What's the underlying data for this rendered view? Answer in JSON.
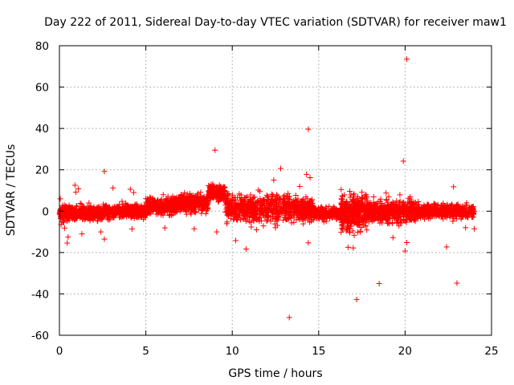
{
  "chart_data": {
    "type": "scatter",
    "title": "Day 222 of 2011, Sidereal Day-to-day VTEC variation (SDTVAR) for receiver maw1",
    "xlabel": "GPS time / hours",
    "ylabel": "SDTVAR / TECUs",
    "xlim": [
      0,
      25
    ],
    "ylim": [
      -60,
      80
    ],
    "xticks": [
      0,
      5,
      10,
      15,
      20,
      25
    ],
    "yticks": [
      -60,
      -40,
      -20,
      0,
      20,
      40,
      60,
      80
    ],
    "grid": true,
    "marker": "+",
    "series": [
      {
        "name": "SDTVAR",
        "color": "#ff0000",
        "points": [
          [
            20.1,
            73.5
          ],
          [
            14.4,
            39.6
          ],
          [
            9.0,
            29.5
          ],
          [
            12.8,
            20.6
          ],
          [
            2.6,
            19.2
          ],
          [
            19.9,
            24.2
          ],
          [
            14.3,
            17.8
          ],
          [
            14.5,
            16.2
          ],
          [
            12.4,
            15.0
          ],
          [
            0.9,
            12.5
          ],
          [
            1.1,
            10.8
          ],
          [
            0.95,
            9.2
          ],
          [
            3.1,
            11.2
          ],
          [
            13.9,
            12.0
          ],
          [
            22.8,
            11.8
          ],
          [
            18.9,
            8.8
          ],
          [
            19.7,
            7.9
          ],
          [
            20.3,
            6.9
          ],
          [
            16.8,
            9.6
          ],
          [
            17.5,
            9.2
          ],
          [
            4.1,
            10.6
          ],
          [
            4.3,
            9.0
          ],
          [
            10.4,
            8.3
          ],
          [
            11.6,
            9.5
          ],
          [
            12.0,
            7.7
          ],
          [
            7.7,
            6.5
          ],
          [
            16.3,
            10.5
          ],
          [
            0.3,
            -8.2
          ],
          [
            0.5,
            -12.5
          ],
          [
            0.45,
            -15.4
          ],
          [
            1.3,
            -11.0
          ],
          [
            2.6,
            -13.5
          ],
          [
            2.4,
            -10.0
          ],
          [
            4.2,
            -8.6
          ],
          [
            9.1,
            -10.0
          ],
          [
            10.2,
            -14.2
          ],
          [
            10.8,
            -18.3
          ],
          [
            12.5,
            -8.0
          ],
          [
            13.3,
            -51.4
          ],
          [
            14.4,
            -15.3
          ],
          [
            15.3,
            -5.2
          ],
          [
            16.3,
            -10.2
          ],
          [
            16.7,
            -17.5
          ],
          [
            17.0,
            -17.8
          ],
          [
            17.2,
            -42.7
          ],
          [
            18.5,
            -35.0
          ],
          [
            19.3,
            -12.8
          ],
          [
            20.0,
            -19.3
          ],
          [
            20.1,
            -15.2
          ],
          [
            22.4,
            -17.3
          ],
          [
            23.0,
            -34.8
          ],
          [
            23.5,
            -8.0
          ],
          [
            24.0,
            -8.5
          ],
          [
            6.1,
            -8.1
          ],
          [
            7.8,
            -8.5
          ],
          [
            11.4,
            -9.0
          ],
          [
            11.8,
            -7.1
          ],
          [
            0.05,
            6.0
          ],
          [
            0.1,
            -6.5
          ]
        ],
        "bands": [
          {
            "x_range": [
              0.0,
              2.5
            ],
            "y_center": -1.0,
            "y_spread": 6.0,
            "count": 420
          },
          {
            "x_range": [
              2.5,
              5.0
            ],
            "y_center": 0.0,
            "y_spread": 5.5,
            "count": 380
          },
          {
            "x_range": [
              5.0,
              7.0
            ],
            "y_center": 2.5,
            "y_spread": 7.0,
            "count": 360
          },
          {
            "x_range": [
              7.0,
              8.6
            ],
            "y_center": 4.0,
            "y_spread": 7.5,
            "count": 300
          },
          {
            "x_range": [
              8.6,
              9.6
            ],
            "y_center": 9.0,
            "y_spread": 6.0,
            "count": 220
          },
          {
            "x_range": [
              9.6,
              13.8
            ],
            "y_center": 1.5,
            "y_spread": 11.0,
            "count": 620
          },
          {
            "x_range": [
              13.8,
              14.7
            ],
            "y_center": 1.0,
            "y_spread": 10.0,
            "count": 180
          },
          {
            "x_range": [
              14.7,
              16.3
            ],
            "y_center": -1.0,
            "y_spread": 5.0,
            "count": 260
          },
          {
            "x_range": [
              16.3,
              17.8
            ],
            "y_center": -1.0,
            "y_spread": 14.0,
            "count": 360
          },
          {
            "x_range": [
              17.8,
              20.8
            ],
            "y_center": 0.0,
            "y_spread": 9.0,
            "count": 520
          },
          {
            "x_range": [
              20.8,
              24.0
            ],
            "y_center": 0.0,
            "y_spread": 5.5,
            "count": 480
          }
        ]
      }
    ]
  }
}
